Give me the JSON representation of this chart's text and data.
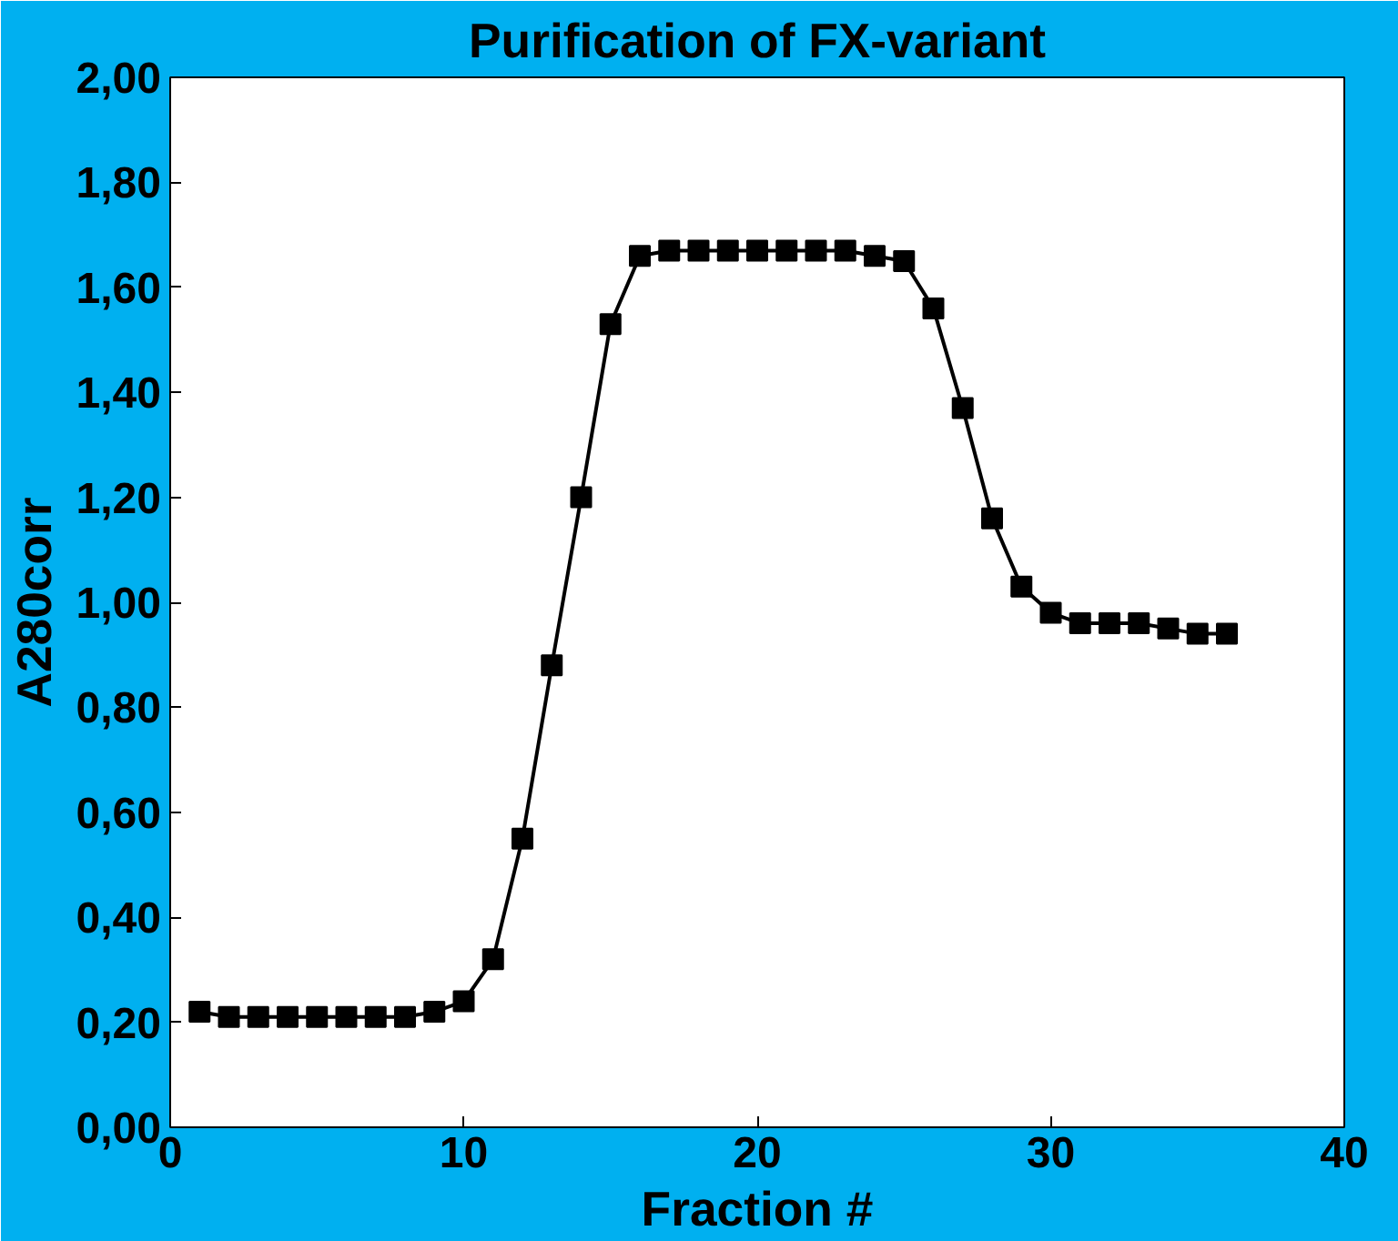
{
  "chart_data": {
    "type": "line",
    "title": "Purification of FX-variant",
    "xlabel": "Fraction #",
    "ylabel": "A280corr",
    "x": [
      1,
      2,
      3,
      4,
      5,
      6,
      7,
      8,
      9,
      10,
      11,
      12,
      13,
      14,
      15,
      16,
      17,
      18,
      19,
      20,
      21,
      22,
      23,
      24,
      25,
      26,
      27,
      28,
      29,
      30,
      31,
      32,
      33,
      34,
      35,
      36
    ],
    "series": [
      {
        "color": "#000000",
        "values": [
          0.22,
          0.21,
          0.21,
          0.21,
          0.21,
          0.21,
          0.21,
          0.21,
          0.22,
          0.24,
          0.32,
          0.55,
          0.88,
          1.2,
          1.53,
          1.66,
          1.67,
          1.67,
          1.67,
          1.67,
          1.67,
          1.67,
          1.67,
          1.66,
          1.65,
          1.56,
          1.37,
          1.16,
          1.03,
          0.98,
          0.96,
          0.96,
          0.96,
          0.95,
          0.94,
          0.94
        ]
      }
    ],
    "xlim": [
      0,
      40
    ],
    "xticks": [
      0,
      10,
      20,
      30,
      40
    ],
    "ylim": [
      0,
      2
    ],
    "yticks": [
      {
        "value": 0,
        "label": "0,00"
      },
      {
        "value": 0.2,
        "label": "0,20"
      },
      {
        "value": 0.4,
        "label": "0,40"
      },
      {
        "value": 0.6,
        "label": "0,60"
      },
      {
        "value": 0.8,
        "label": "0,80"
      },
      {
        "value": 1.0,
        "label": "1,00"
      },
      {
        "value": 1.2,
        "label": "1,20"
      },
      {
        "value": 1.4,
        "label": "1,40"
      },
      {
        "value": 1.6,
        "label": "1,60"
      },
      {
        "value": 1.8,
        "label": "1,80"
      },
      {
        "value": 2.0,
        "label": "2,00"
      }
    ],
    "grid": false,
    "marker": "square",
    "line_style": "solid"
  }
}
